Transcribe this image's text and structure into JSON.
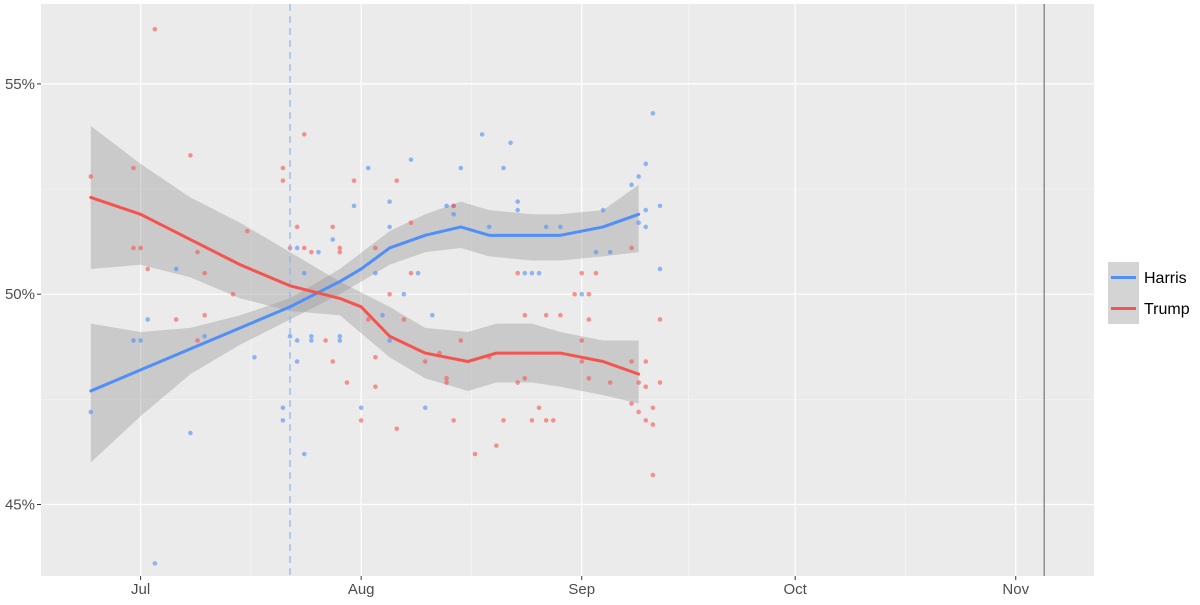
{
  "chart_data": {
    "type": "scatter",
    "title": "",
    "xlabel": "",
    "ylabel": "",
    "x_ticks": [
      {
        "label": "Jul",
        "day": 0
      },
      {
        "label": "Aug",
        "day": 31
      },
      {
        "label": "Sep",
        "day": 62
      },
      {
        "label": "Oct",
        "day": 92
      },
      {
        "label": "Nov",
        "day": 123
      }
    ],
    "y_ticks": [
      {
        "label": "45%",
        "value": 45
      },
      {
        "label": "50%",
        "value": 50
      },
      {
        "label": "55%",
        "value": 55
      }
    ],
    "xlim_days": [
      -14,
      134
    ],
    "ylim": [
      43.3,
      56.9
    ],
    "vline_dashed_day": 21,
    "vline_solid_day": 127,
    "legend": [
      {
        "name": "Harris",
        "color": "#4f8ff7"
      },
      {
        "name": "Trump",
        "color": "#f5534f"
      }
    ],
    "series": [
      {
        "name": "Harris",
        "color": "#4f8ff7",
        "trend": [
          [
            -7,
            47.7
          ],
          [
            0,
            48.2
          ],
          [
            7,
            48.7
          ],
          [
            14,
            49.2
          ],
          [
            21,
            49.7
          ],
          [
            28,
            50.3
          ],
          [
            31,
            50.6
          ],
          [
            35,
            51.1
          ],
          [
            40,
            51.4
          ],
          [
            45,
            51.6
          ],
          [
            49,
            51.4
          ],
          [
            55,
            51.4
          ],
          [
            59,
            51.4
          ],
          [
            65,
            51.6
          ],
          [
            70,
            51.9
          ]
        ],
        "band_upper": [
          [
            -7,
            49.3
          ],
          [
            0,
            49.1
          ],
          [
            7,
            49.2
          ],
          [
            14,
            49.5
          ],
          [
            21,
            49.9
          ],
          [
            28,
            50.6
          ],
          [
            35,
            51.5
          ],
          [
            40,
            51.9
          ],
          [
            45,
            52.2
          ],
          [
            49,
            52.0
          ],
          [
            55,
            51.9
          ],
          [
            59,
            51.9
          ],
          [
            65,
            52.0
          ],
          [
            70,
            52.6
          ]
        ],
        "band_lower": [
          [
            -7,
            46.0
          ],
          [
            0,
            47.1
          ],
          [
            7,
            48.1
          ],
          [
            14,
            48.8
          ],
          [
            21,
            49.4
          ],
          [
            28,
            50.0
          ],
          [
            35,
            50.7
          ],
          [
            40,
            51.0
          ],
          [
            45,
            51.1
          ],
          [
            49,
            50.9
          ],
          [
            55,
            50.8
          ],
          [
            59,
            50.8
          ],
          [
            65,
            50.9
          ],
          [
            70,
            51.0
          ]
        ],
        "points": [
          [
            -7,
            47.2
          ],
          [
            -1,
            48.9
          ],
          [
            0,
            48.9
          ],
          [
            1,
            49.4
          ],
          [
            2,
            43.6
          ],
          [
            5,
            50.6
          ],
          [
            7,
            46.7
          ],
          [
            9,
            49.0
          ],
          [
            16,
            48.5
          ],
          [
            20,
            47.3
          ],
          [
            20,
            47.0
          ],
          [
            21,
            49.0
          ],
          [
            22,
            51.1
          ],
          [
            22,
            48.4
          ],
          [
            22,
            48.9
          ],
          [
            23,
            50.5
          ],
          [
            23,
            46.2
          ],
          [
            24,
            48.9
          ],
          [
            24,
            49.0
          ],
          [
            25,
            51.0
          ],
          [
            27,
            51.3
          ],
          [
            28,
            49.0
          ],
          [
            28,
            48.9
          ],
          [
            30,
            52.1
          ],
          [
            31,
            47.3
          ],
          [
            32,
            53.0
          ],
          [
            33,
            50.5
          ],
          [
            34,
            49.5
          ],
          [
            35,
            52.2
          ],
          [
            35,
            51.6
          ],
          [
            35,
            48.9
          ],
          [
            37,
            50.0
          ],
          [
            38,
            53.2
          ],
          [
            39,
            50.5
          ],
          [
            40,
            47.3
          ],
          [
            41,
            49.5
          ],
          [
            43,
            52.1
          ],
          [
            44,
            52.1
          ],
          [
            44,
            51.9
          ],
          [
            45,
            53.0
          ],
          [
            48,
            53.8
          ],
          [
            49,
            51.6
          ],
          [
            51,
            53.0
          ],
          [
            52,
            53.6
          ],
          [
            53,
            52.2
          ],
          [
            53,
            52.0
          ],
          [
            54,
            50.5
          ],
          [
            55,
            50.5
          ],
          [
            56,
            50.5
          ],
          [
            57,
            51.6
          ],
          [
            59,
            51.6
          ],
          [
            62,
            50.0
          ],
          [
            64,
            51.0
          ],
          [
            65,
            52.0
          ],
          [
            66,
            51.0
          ],
          [
            69,
            52.6
          ],
          [
            70,
            51.7
          ],
          [
            70,
            52.8
          ],
          [
            71,
            53.1
          ],
          [
            71,
            52.0
          ],
          [
            71,
            51.6
          ],
          [
            72,
            54.3
          ],
          [
            73,
            52.1
          ],
          [
            73,
            50.6
          ]
        ]
      },
      {
        "name": "Trump",
        "color": "#f5534f",
        "trend": [
          [
            -7,
            52.3
          ],
          [
            0,
            51.9
          ],
          [
            7,
            51.3
          ],
          [
            14,
            50.7
          ],
          [
            21,
            50.2
          ],
          [
            28,
            49.9
          ],
          [
            31,
            49.7
          ],
          [
            35,
            49.0
          ],
          [
            40,
            48.6
          ],
          [
            46,
            48.4
          ],
          [
            50,
            48.6
          ],
          [
            55,
            48.6
          ],
          [
            59,
            48.6
          ],
          [
            65,
            48.4
          ],
          [
            70,
            48.1
          ]
        ],
        "band_upper": [
          [
            -7,
            54.0
          ],
          [
            0,
            53.1
          ],
          [
            7,
            52.3
          ],
          [
            14,
            51.7
          ],
          [
            21,
            51.0
          ],
          [
            28,
            50.3
          ],
          [
            35,
            49.7
          ],
          [
            40,
            49.2
          ],
          [
            46,
            49.1
          ],
          [
            50,
            49.3
          ],
          [
            55,
            49.3
          ],
          [
            59,
            49.1
          ],
          [
            65,
            48.9
          ],
          [
            70,
            48.9
          ]
        ],
        "band_lower": [
          [
            -7,
            50.6
          ],
          [
            0,
            50.7
          ],
          [
            7,
            50.4
          ],
          [
            14,
            49.9
          ],
          [
            21,
            49.6
          ],
          [
            28,
            49.5
          ],
          [
            35,
            48.5
          ],
          [
            40,
            48.0
          ],
          [
            46,
            47.7
          ],
          [
            50,
            47.9
          ],
          [
            55,
            47.9
          ],
          [
            59,
            47.8
          ],
          [
            65,
            47.6
          ],
          [
            70,
            47.4
          ]
        ],
        "points": [
          [
            -7,
            52.8
          ],
          [
            -1,
            53.0
          ],
          [
            -1,
            51.1
          ],
          [
            0,
            51.1
          ],
          [
            1,
            50.6
          ],
          [
            2,
            56.3
          ],
          [
            5,
            49.4
          ],
          [
            7,
            53.3
          ],
          [
            8,
            51.0
          ],
          [
            8,
            48.9
          ],
          [
            9,
            50.5
          ],
          [
            9,
            49.5
          ],
          [
            13,
            50.0
          ],
          [
            15,
            51.5
          ],
          [
            20,
            53.0
          ],
          [
            20,
            52.7
          ],
          [
            21,
            51.1
          ],
          [
            22,
            51.6
          ],
          [
            23,
            53.8
          ],
          [
            23,
            51.1
          ],
          [
            24,
            51.0
          ],
          [
            26,
            48.9
          ],
          [
            27,
            51.6
          ],
          [
            27,
            48.4
          ],
          [
            28,
            51.1
          ],
          [
            28,
            51.0
          ],
          [
            29,
            47.9
          ],
          [
            30,
            52.7
          ],
          [
            31,
            47.0
          ],
          [
            32,
            49.4
          ],
          [
            33,
            51.1
          ],
          [
            33,
            48.5
          ],
          [
            33,
            47.8
          ],
          [
            35,
            50.0
          ],
          [
            36,
            46.8
          ],
          [
            36,
            52.7
          ],
          [
            37,
            49.4
          ],
          [
            38,
            51.7
          ],
          [
            38,
            50.5
          ],
          [
            40,
            48.4
          ],
          [
            42,
            48.6
          ],
          [
            43,
            47.9
          ],
          [
            43,
            48.0
          ],
          [
            44,
            47.0
          ],
          [
            44,
            52.1
          ],
          [
            45,
            48.9
          ],
          [
            47,
            46.2
          ],
          [
            49,
            48.5
          ],
          [
            50,
            46.4
          ],
          [
            51,
            47.0
          ],
          [
            53,
            47.9
          ],
          [
            53,
            50.5
          ],
          [
            54,
            49.5
          ],
          [
            54,
            48.0
          ],
          [
            55,
            47.0
          ],
          [
            56,
            47.3
          ],
          [
            57,
            49.5
          ],
          [
            57,
            47.0
          ],
          [
            58,
            47.0
          ],
          [
            59,
            49.5
          ],
          [
            61,
            50.0
          ],
          [
            62,
            50.5
          ],
          [
            62,
            48.9
          ],
          [
            62,
            48.4
          ],
          [
            63,
            50.0
          ],
          [
            63,
            49.4
          ],
          [
            63,
            48.0
          ],
          [
            64,
            50.5
          ],
          [
            66,
            47.9
          ],
          [
            69,
            47.4
          ],
          [
            69,
            48.4
          ],
          [
            69,
            51.1
          ],
          [
            70,
            47.2
          ],
          [
            70,
            47.9
          ],
          [
            71,
            48.4
          ],
          [
            71,
            47.0
          ],
          [
            71,
            47.8
          ],
          [
            72,
            47.3
          ],
          [
            72,
            46.9
          ],
          [
            72,
            45.7
          ],
          [
            73,
            49.4
          ],
          [
            73,
            47.9
          ]
        ]
      }
    ]
  }
}
